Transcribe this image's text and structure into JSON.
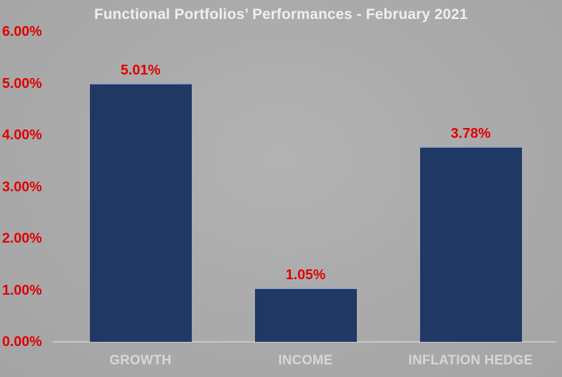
{
  "title": "Functional Portfolios’ Performances - February 2021",
  "colors": {
    "background_center": "#b2b2b2",
    "background_edge": "#a4a4a4",
    "bar_fill": "#203864",
    "bar_top_highlight": "#93a3bd",
    "value_text": "#e00000",
    "ytick_text": "#e00000",
    "axis_line": "#c8c8c8",
    "category_text": "#d7d7d7",
    "title_text": "#efefef"
  },
  "chart_data": {
    "type": "bar",
    "title": "Functional Portfolios’ Performances - February 2021",
    "categories": [
      "GROWTH",
      "INCOME",
      "INFLATION HEDGE"
    ],
    "values": [
      5.01,
      1.05,
      3.78
    ],
    "value_labels": [
      "5.01%",
      "1.05%",
      "3.78%"
    ],
    "xlabel": "",
    "ylabel": "",
    "ylim": [
      0,
      6
    ],
    "ytick_step": 1,
    "ytick_labels": [
      "0.00%",
      "1.00%",
      "2.00%",
      "3.00%",
      "4.00%",
      "5.00%",
      "6.00%"
    ],
    "grid": false,
    "legend": false
  }
}
